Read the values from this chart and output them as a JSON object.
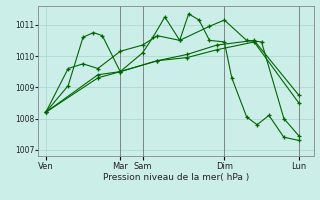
{
  "bg_color": "#cceee8",
  "grid_color": "#aad4cc",
  "line_color": "#006600",
  "xlabel": "Pression niveau de la mer( hPa )",
  "ylim": [
    1006.8,
    1011.6
  ],
  "yticks": [
    1007,
    1008,
    1009,
    1010,
    1011
  ],
  "xtick_labels": [
    "Ven",
    "Mar",
    "Sam",
    "Dim",
    "Lun"
  ],
  "xtick_positions": [
    0,
    5,
    6.5,
    12,
    17
  ],
  "vline_positions": [
    5,
    6.5,
    12,
    17
  ],
  "vline_color": "#777777",
  "series": [
    {
      "x": [
        0,
        1.5,
        2.5,
        3.2,
        3.8,
        5.0,
        6.5,
        7.2,
        8.0,
        9.0,
        9.6,
        10.3,
        11.0,
        12.0,
        12.5,
        13.5,
        14.2,
        15.0,
        16.0,
        17.0
      ],
      "y": [
        1008.2,
        1009.05,
        1010.6,
        1010.75,
        1010.65,
        1009.5,
        1010.1,
        1010.6,
        1011.25,
        1010.5,
        1011.35,
        1011.15,
        1010.5,
        1010.45,
        1009.3,
        1008.05,
        1007.8,
        1008.1,
        1007.4,
        1007.3
      ]
    },
    {
      "x": [
        0,
        1.5,
        2.5,
        3.5,
        5.0,
        6.5,
        7.5,
        9.0,
        11.0,
        12.0,
        13.5,
        14.5,
        16.0,
        17.0
      ],
      "y": [
        1008.2,
        1009.6,
        1009.75,
        1009.6,
        1010.15,
        1010.35,
        1010.65,
        1010.5,
        1010.95,
        1011.15,
        1010.5,
        1010.45,
        1008.0,
        1007.45
      ]
    },
    {
      "x": [
        0,
        3.5,
        5.0,
        7.5,
        9.5,
        11.5,
        14.0,
        17.0
      ],
      "y": [
        1008.2,
        1009.3,
        1009.5,
        1009.85,
        1010.05,
        1010.35,
        1010.5,
        1008.75
      ]
    },
    {
      "x": [
        0,
        3.5,
        5.0,
        7.5,
        9.5,
        11.5,
        14.0,
        17.0
      ],
      "y": [
        1008.2,
        1009.4,
        1009.5,
        1009.85,
        1009.95,
        1010.2,
        1010.45,
        1008.5
      ]
    }
  ]
}
